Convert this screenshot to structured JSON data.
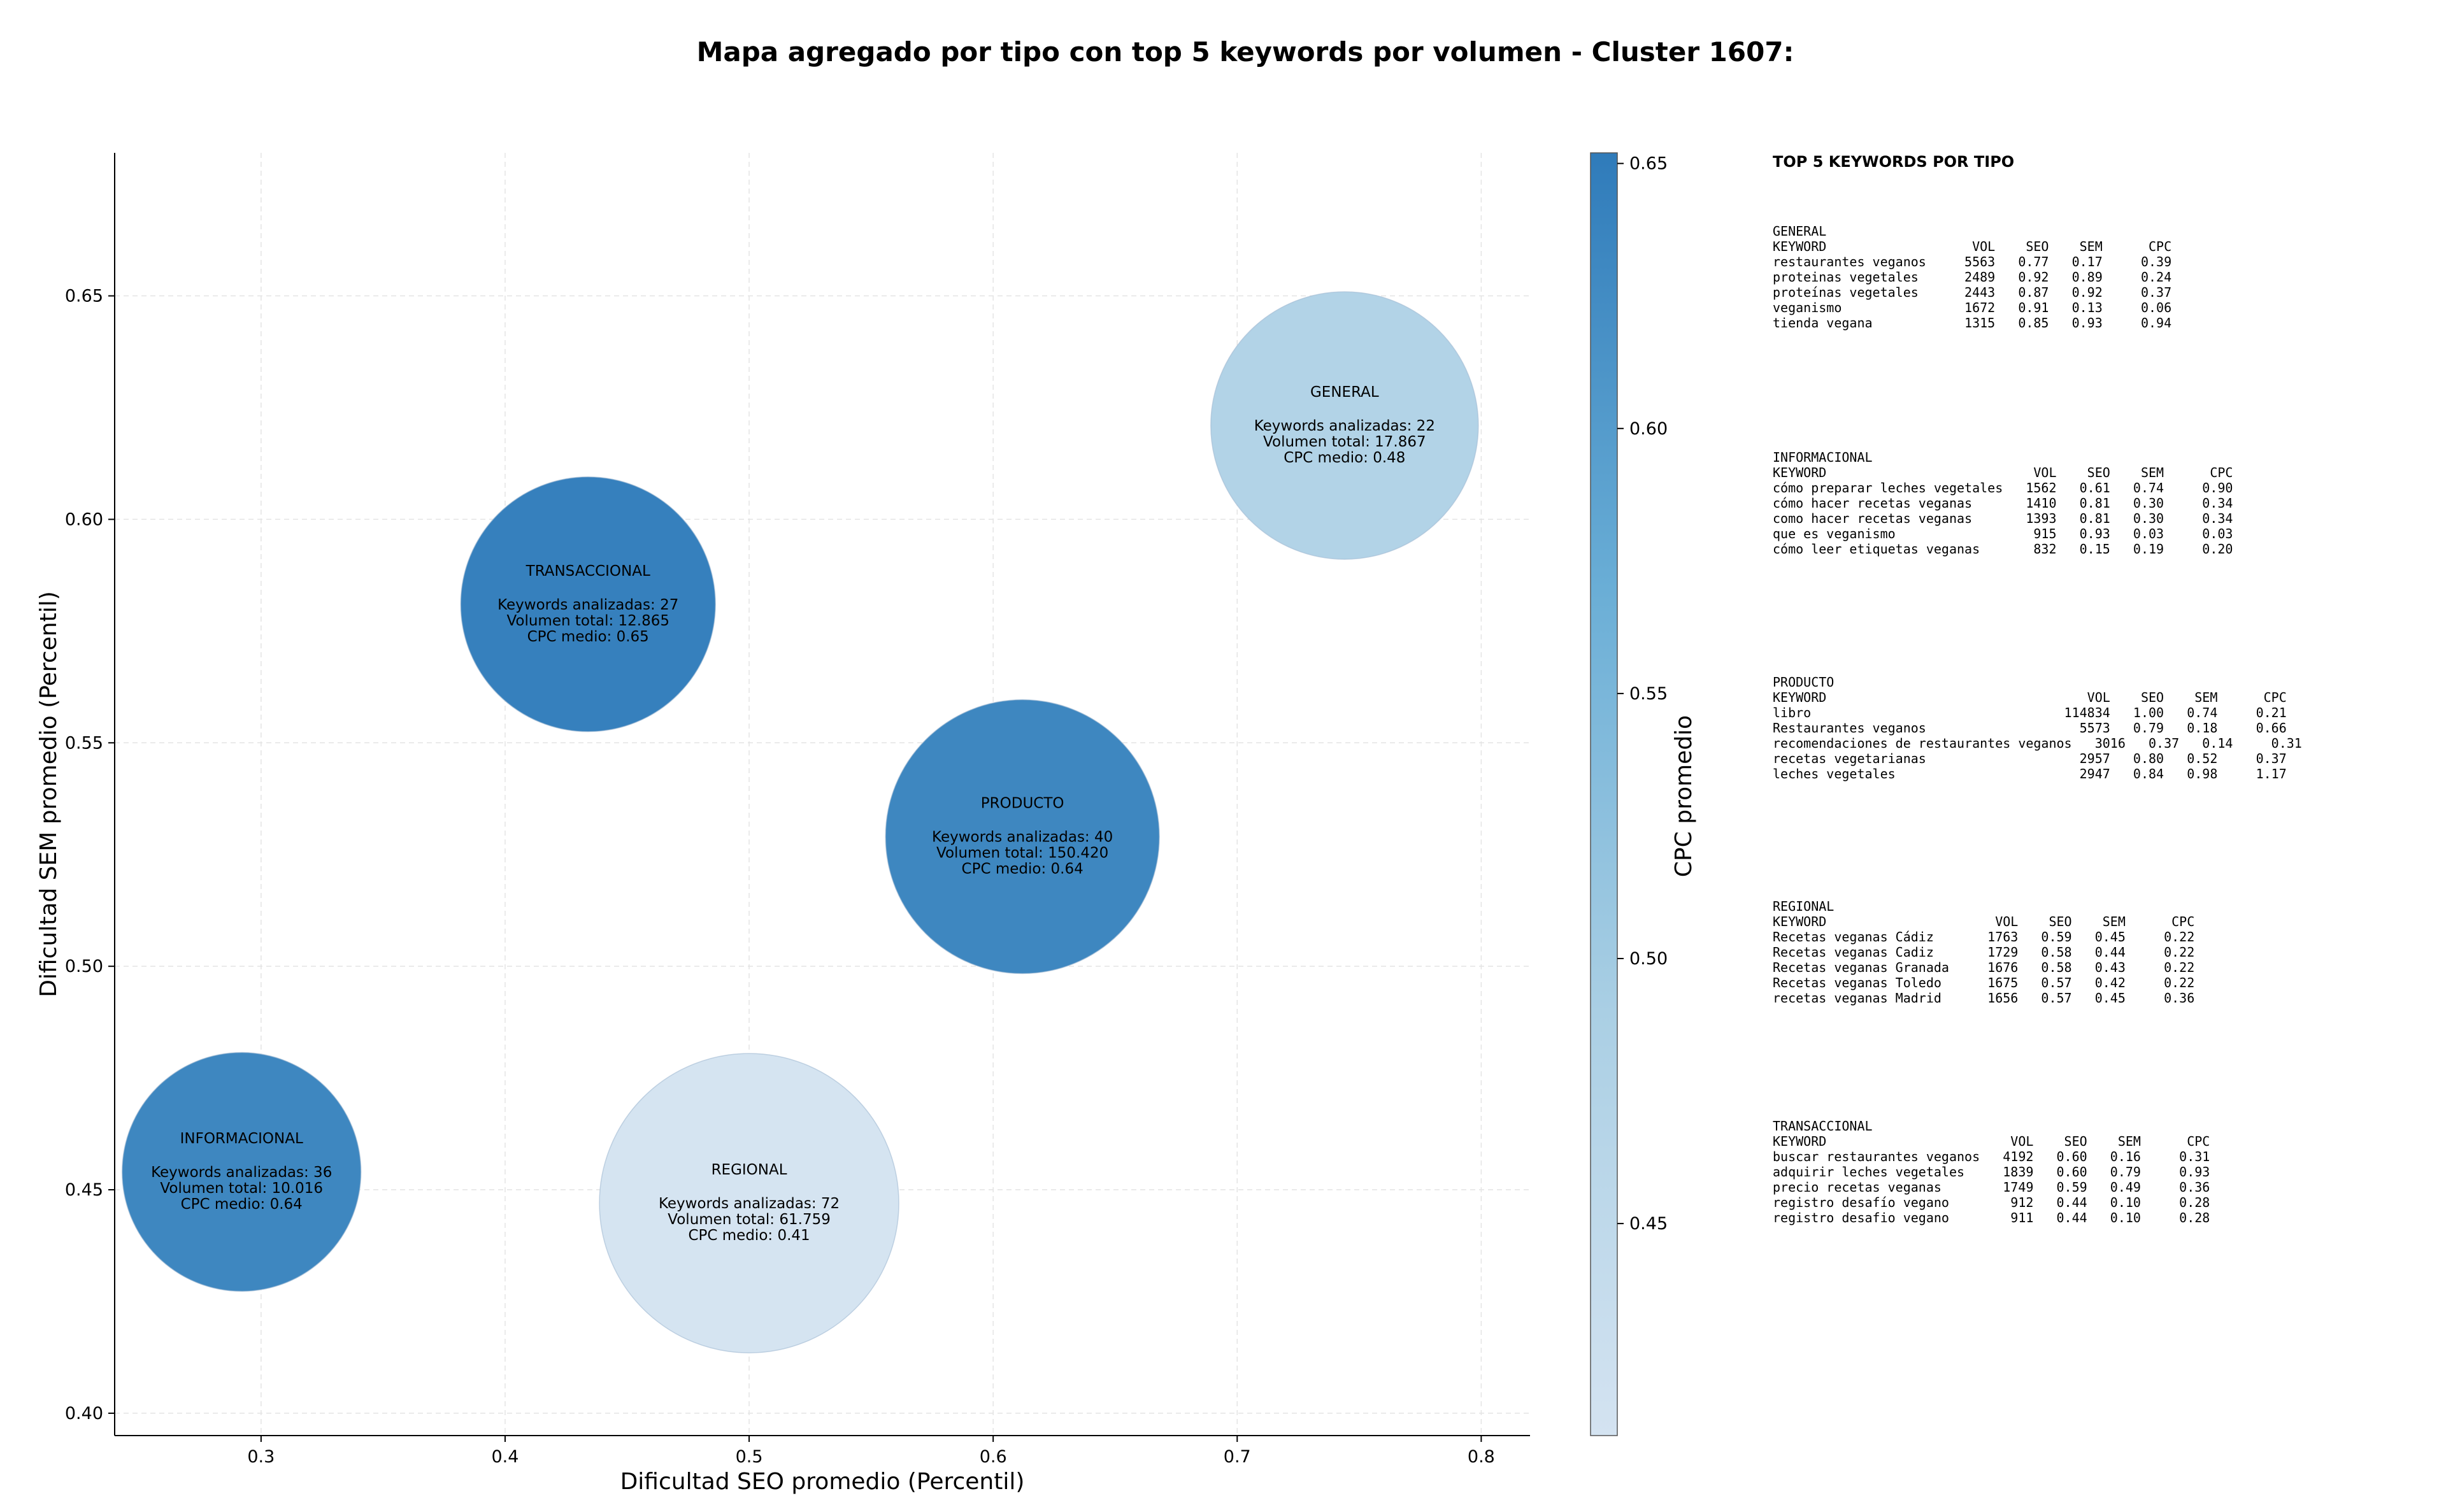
{
  "chart_data": {
    "type": "scatter",
    "title": "Mapa agregado por tipo con top 5 keywords por volumen - Cluster 1607:",
    "xlabel": "Dificultad SEO promedio (Percentil)",
    "ylabel": "Dificultad SEM promedio (Percentil)",
    "xlim": [
      0.24,
      0.82
    ],
    "ylim": [
      0.395,
      0.682
    ],
    "xticks": [
      "0.3",
      "0.4",
      "0.5",
      "0.6",
      "0.7",
      "0.8"
    ],
    "yticks": [
      "0.40",
      "0.45",
      "0.50",
      "0.55",
      "0.60",
      "0.65"
    ],
    "grid": true,
    "colorbar": {
      "label": "CPC promedio",
      "range": [
        0.41,
        0.652
      ],
      "ticks": [
        "0.45",
        "0.50",
        "0.55",
        "0.60",
        "0.65"
      ],
      "colors": [
        "#d4e3f1",
        "#aacfe4",
        "#6aaed6",
        "#2f7bba"
      ]
    },
    "points": [
      {
        "name": "GENERAL",
        "x": 0.744,
        "y": 0.621,
        "cpc": 0.48,
        "size": 0.84,
        "lines": [
          "Keywords analizadas: 22",
          "Volumen total: 17.867",
          "CPC medio: 0.48"
        ]
      },
      {
        "name": "TRANSACCIONAL",
        "x": 0.434,
        "y": 0.581,
        "cpc": 0.65,
        "size": 0.8,
        "lines": [
          "Keywords analizadas: 27",
          "Volumen total: 12.865",
          "CPC medio: 0.65"
        ]
      },
      {
        "name": "PRODUCTO",
        "x": 0.612,
        "y": 0.529,
        "cpc": 0.64,
        "size": 0.86,
        "lines": [
          "Keywords analizadas: 40",
          "Volumen total: 150.420",
          "CPC medio: 0.64"
        ]
      },
      {
        "name": "INFORMACIONAL",
        "x": 0.292,
        "y": 0.454,
        "cpc": 0.64,
        "size": 0.75,
        "lines": [
          "Keywords analizadas: 36",
          "Volumen total: 10.016",
          "CPC medio: 0.64"
        ]
      },
      {
        "name": "REGIONAL",
        "x": 0.5,
        "y": 0.447,
        "cpc": 0.41,
        "size": 0.94,
        "lines": [
          "Keywords analizadas: 72",
          "Volumen total: 61.759",
          "CPC medio: 0.41"
        ]
      }
    ]
  },
  "side_panel": {
    "heading": "TOP 5 KEYWORDS POR TIPO",
    "blocks": [
      {
        "lines": [
          "GENERAL",
          "KEYWORD                   VOL    SEO    SEM      CPC",
          "restaurantes veganos     5563   0.77   0.17     0.39",
          "proteinas vegetales      2489   0.92   0.89     0.24",
          "proteínas vegetales      2443   0.87   0.92     0.37",
          "veganismo                1672   0.91   0.13     0.06",
          "tienda vegana            1315   0.85   0.93     0.94"
        ]
      },
      {
        "lines": [
          "INFORMACIONAL",
          "KEYWORD                           VOL    SEO    SEM      CPC",
          "cómo preparar leches vegetales   1562   0.61   0.74     0.90",
          "cómo hacer recetas veganas       1410   0.81   0.30     0.34",
          "como hacer recetas veganas       1393   0.81   0.30     0.34",
          "que es veganismo                  915   0.93   0.03     0.03",
          "cómo leer etiquetas veganas       832   0.15   0.19     0.20"
        ]
      },
      {
        "lines": [
          "PRODUCTO",
          "KEYWORD                                  VOL    SEO    SEM      CPC",
          "libro                                 114834   1.00   0.74     0.21",
          "Restaurantes veganos                    5573   0.79   0.18     0.66",
          "recomendaciones de restaurantes veganos   3016   0.37   0.14     0.31",
          "recetas vegetarianas                    2957   0.80   0.52     0.37",
          "leches vegetales                        2947   0.84   0.98     1.17"
        ]
      },
      {
        "lines": [
          "REGIONAL",
          "KEYWORD                      VOL    SEO    SEM      CPC",
          "Recetas veganas Cádiz       1763   0.59   0.45     0.22",
          "Recetas veganas Cadiz       1729   0.58   0.44     0.22",
          "Recetas veganas Granada     1676   0.58   0.43     0.22",
          "Recetas veganas Toledo      1675   0.57   0.42     0.22",
          "recetas veganas Madrid      1656   0.57   0.45     0.36"
        ]
      },
      {
        "lines": [
          "TRANSACCIONAL",
          "KEYWORD                        VOL    SEO    SEM      CPC",
          "buscar restaurantes veganos   4192   0.60   0.16     0.31",
          "adquirir leches vegetales     1839   0.60   0.79     0.93",
          "precio recetas veganas        1749   0.59   0.49     0.36",
          "registro desafío vegano        912   0.44   0.10     0.28",
          "registro desafio vegano        911   0.44   0.10     0.28"
        ]
      }
    ]
  }
}
